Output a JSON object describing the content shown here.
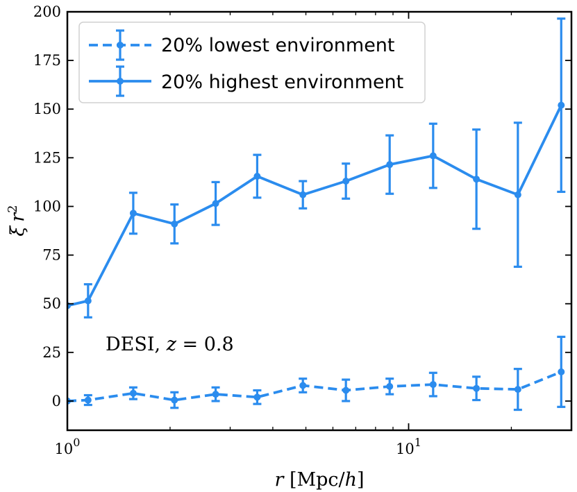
{
  "chart_data": {
    "type": "line",
    "xscale": "log",
    "xlim": [
      1.0,
      30.0
    ],
    "ylim": [
      -15,
      200
    ],
    "yticks": [
      0,
      25,
      50,
      75,
      100,
      125,
      150,
      175,
      200
    ],
    "ytick_labels": [
      "0",
      "25",
      "50",
      "75",
      "100",
      "125",
      "150",
      "175",
      "200"
    ],
    "xticks_major": [
      1,
      10
    ],
    "xtick_labels": [
      {
        "base": "10",
        "exp": "0"
      },
      {
        "base": "10",
        "exp": "1"
      }
    ],
    "xlabel": {
      "var": "r",
      "rest": " [Mpc/",
      "h": "h",
      "close": "]"
    },
    "ylabel": {
      "xi": "ξ",
      "r": "r",
      "exp": "2"
    },
    "annotation": {
      "prefix": "DESI, ",
      "var": "z",
      "suffix": " = 0.8"
    },
    "legend_position": "top-left",
    "color": "#2b8cee",
    "series": [
      {
        "name": "20% lowest environment",
        "style": "dashed",
        "x": [
          1.0,
          1.15,
          1.56,
          2.06,
          2.72,
          3.6,
          4.9,
          6.55,
          8.8,
          11.8,
          15.8,
          20.9,
          28.0
        ],
        "y": [
          0,
          0.5,
          4,
          0.5,
          3.5,
          2,
          8,
          5.5,
          7.5,
          8.5,
          6.5,
          6,
          15
        ],
        "err": [
          0,
          2.5,
          3,
          4,
          3.5,
          3.5,
          3.5,
          5.5,
          4,
          6,
          6,
          10.5,
          18
        ]
      },
      {
        "name": "20% highest environment",
        "style": "solid",
        "x": [
          1.0,
          1.15,
          1.56,
          2.06,
          2.72,
          3.6,
          4.9,
          6.55,
          8.8,
          11.8,
          15.8,
          20.9,
          28.0
        ],
        "y": [
          49,
          51.5,
          96.5,
          91,
          101.5,
          115.5,
          106,
          113,
          121.5,
          126,
          114,
          106,
          152
        ],
        "err": [
          0,
          8.5,
          10.5,
          10,
          11,
          11,
          7,
          9,
          15,
          16.5,
          25.5,
          37,
          44.5
        ]
      }
    ]
  }
}
